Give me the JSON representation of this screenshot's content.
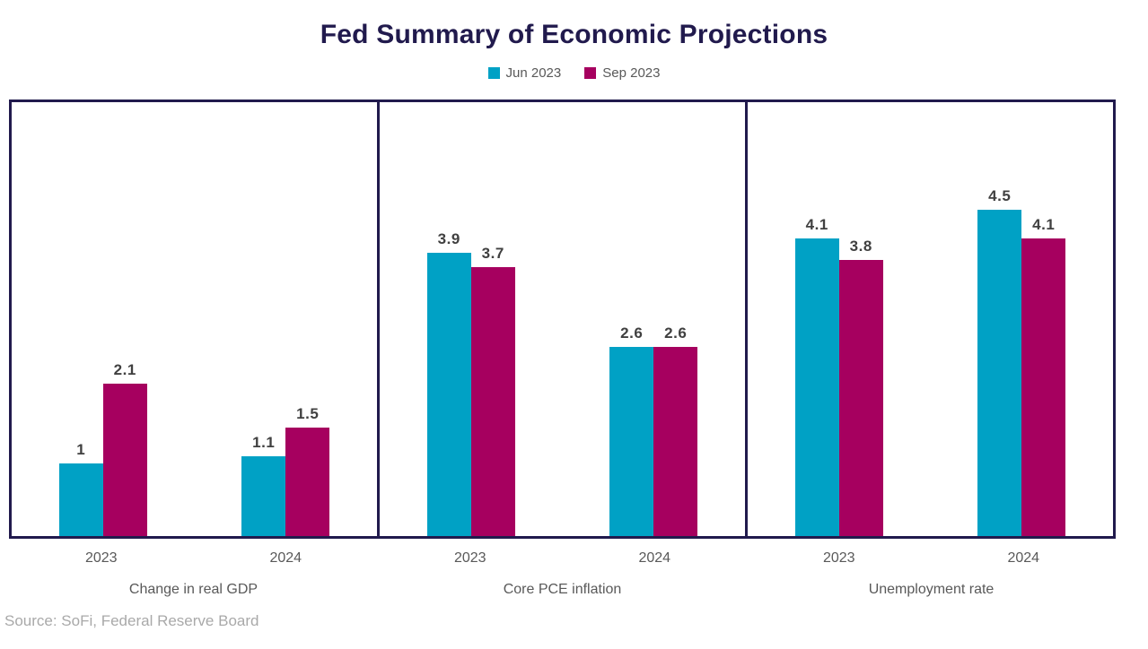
{
  "header": {
    "title": "Fed Summary of Economic Projections",
    "title_color": "#211a4d"
  },
  "source_note": "Source: SoFi, Federal Reserve Board",
  "chart_data": {
    "type": "bar",
    "title": "Fed Summary of Economic Projections",
    "legend_position": "top",
    "grid": false,
    "ylim": [
      0,
      6
    ],
    "categories": [
      "2023",
      "2024"
    ],
    "series_names": [
      "Jun 2023",
      "Sep 2023"
    ],
    "colors": {
      "jun_2023": "#00a1c5",
      "sep_2023": "#a6005f"
    },
    "border_color": "#211a4d",
    "category_label_color": "#595959",
    "value_label_color": "#404040",
    "panels": [
      {
        "title": "Change in real GDP",
        "categories": [
          "2023",
          "2024"
        ],
        "series": [
          {
            "name": "Jun 2023",
            "color": "#00a1c5",
            "values": [
              1,
              1.1
            ],
            "labels": [
              "1",
              "1.1"
            ]
          },
          {
            "name": "Sep 2023",
            "color": "#a6005f",
            "values": [
              2.1,
              1.5
            ],
            "labels": [
              "2.1",
              "1.5"
            ]
          }
        ]
      },
      {
        "title": "Core PCE inflation",
        "categories": [
          "2023",
          "2024"
        ],
        "series": [
          {
            "name": "Jun 2023",
            "color": "#00a1c5",
            "values": [
              3.9,
              2.6
            ],
            "labels": [
              "3.9",
              "2.6"
            ]
          },
          {
            "name": "Sep 2023",
            "color": "#a6005f",
            "values": [
              3.7,
              2.6
            ],
            "labels": [
              "3.7",
              "2.6"
            ]
          }
        ]
      },
      {
        "title": "Unemployment rate",
        "categories": [
          "2023",
          "2024"
        ],
        "series": [
          {
            "name": "Jun 2023",
            "color": "#00a1c5",
            "values": [
              4.1,
              4.5
            ],
            "labels": [
              "4.1",
              "4.5"
            ]
          },
          {
            "name": "Sep 2023",
            "color": "#a6005f",
            "values": [
              3.8,
              4.1
            ],
            "labels": [
              "3.8",
              "4.1"
            ]
          }
        ]
      }
    ]
  }
}
